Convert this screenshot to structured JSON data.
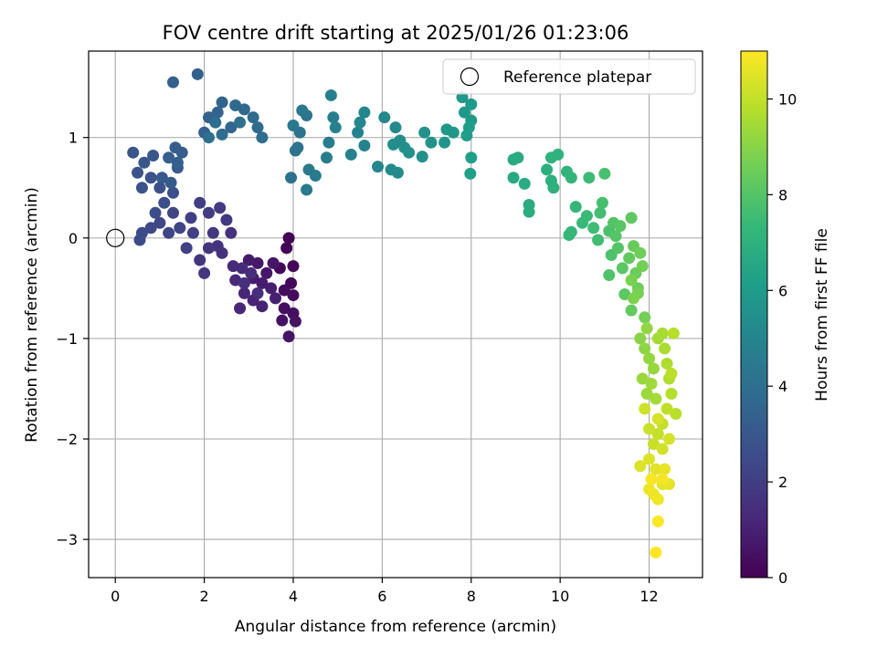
{
  "chart_data": {
    "type": "scatter",
    "title": "FOV centre drift starting at 2025/01/26 01:23:06",
    "xlabel": "Angular distance from reference (arcmin)",
    "ylabel": "Rotation from reference (arcmin)",
    "xlim": [
      -0.6,
      13.2
    ],
    "ylim": [
      -3.38,
      1.86
    ],
    "xticks": [
      0,
      2,
      4,
      6,
      8,
      10,
      12
    ],
    "yticks": [
      -3,
      -2,
      -1,
      0,
      1
    ],
    "grid": true,
    "legend": {
      "label": "Reference platepar",
      "position": "top-right"
    },
    "reference_point": {
      "x": 0,
      "y": 0
    },
    "colorbar": {
      "label": "Hours from first FF file",
      "range": [
        0,
        11
      ],
      "ticks": [
        0,
        2,
        4,
        6,
        8,
        10
      ],
      "colormap": "viridis"
    },
    "colormap_stops": [
      "#440154",
      "#482878",
      "#3e4a89",
      "#31688e",
      "#26828e",
      "#1f9e89",
      "#35b779",
      "#6ece58",
      "#b5de2b",
      "#fde725"
    ],
    "series": [
      {
        "points": [
          [
            3.9,
            0.0,
            0.0
          ],
          [
            3.85,
            -0.1,
            0.1
          ],
          [
            4.0,
            -0.28,
            0.15
          ],
          [
            3.7,
            -0.3,
            0.2
          ],
          [
            3.95,
            -0.45,
            0.25
          ],
          [
            3.8,
            -0.52,
            0.3
          ],
          [
            4.0,
            -0.57,
            0.35
          ],
          [
            3.8,
            -0.7,
            0.4
          ],
          [
            4.0,
            -0.75,
            0.45
          ],
          [
            3.75,
            -0.82,
            0.5
          ],
          [
            4.05,
            -0.83,
            0.55
          ],
          [
            3.9,
            -0.98,
            0.6
          ],
          [
            3.55,
            -0.25,
            0.65
          ],
          [
            3.4,
            -0.35,
            0.7
          ],
          [
            3.2,
            -0.25,
            0.75
          ],
          [
            3.0,
            -0.22,
            0.8
          ],
          [
            3.1,
            -0.4,
            0.85
          ],
          [
            3.3,
            -0.45,
            0.9
          ],
          [
            3.5,
            -0.5,
            0.95
          ],
          [
            3.6,
            -0.6,
            1.0
          ],
          [
            3.3,
            -0.68,
            1.05
          ],
          [
            3.1,
            -0.62,
            1.1
          ],
          [
            2.9,
            -0.55,
            1.15
          ],
          [
            2.8,
            -0.7,
            1.2
          ],
          [
            2.7,
            -0.42,
            1.25
          ],
          [
            2.65,
            -0.28,
            1.3
          ],
          [
            2.85,
            -0.3,
            1.35
          ],
          [
            3.05,
            -0.35,
            1.4
          ],
          [
            3.2,
            -0.55,
            1.45
          ],
          [
            2.9,
            -0.45,
            1.5
          ],
          [
            2.4,
            -0.15,
            1.5
          ],
          [
            2.6,
            0.05,
            1.55
          ],
          [
            2.3,
            -0.08,
            1.6
          ],
          [
            2.1,
            -0.1,
            1.65
          ],
          [
            1.9,
            -0.22,
            1.7
          ],
          [
            2.0,
            -0.35,
            1.75
          ],
          [
            2.2,
            0.05,
            1.8
          ],
          [
            2.5,
            0.18,
            1.85
          ],
          [
            2.35,
            0.3,
            1.9
          ],
          [
            2.1,
            0.25,
            1.95
          ],
          [
            1.9,
            0.35,
            2.0
          ],
          [
            1.7,
            0.2,
            2.05
          ],
          [
            1.75,
            0.05,
            2.1
          ],
          [
            1.6,
            -0.1,
            2.15
          ],
          [
            1.45,
            0.1,
            2.2
          ],
          [
            1.3,
            0.25,
            2.25
          ],
          [
            1.2,
            0.05,
            2.3
          ],
          [
            1.0,
            0.15,
            2.35
          ],
          [
            0.8,
            0.1,
            2.4
          ],
          [
            0.6,
            0.05,
            2.45
          ],
          [
            0.55,
            -0.02,
            2.5
          ],
          [
            0.9,
            0.25,
            2.55
          ],
          [
            1.1,
            0.35,
            2.6
          ],
          [
            1.3,
            0.45,
            2.65
          ],
          [
            1.0,
            0.5,
            2.7
          ],
          [
            0.8,
            0.6,
            2.75
          ],
          [
            0.6,
            0.5,
            2.8
          ],
          [
            0.5,
            0.65,
            2.85
          ],
          [
            0.4,
            0.85,
            2.9
          ],
          [
            0.65,
            0.75,
            2.95
          ],
          [
            0.85,
            0.82,
            3.0
          ],
          [
            1.05,
            0.6,
            3.05
          ],
          [
            1.25,
            0.55,
            3.1
          ],
          [
            1.4,
            0.7,
            3.15
          ],
          [
            1.5,
            0.85,
            3.2
          ],
          [
            1.35,
            0.9,
            3.25
          ],
          [
            1.2,
            0.8,
            3.3
          ],
          [
            1.4,
            0.75,
            3.35
          ],
          [
            1.3,
            1.55,
            3.3
          ],
          [
            1.85,
            1.63,
            3.35
          ],
          [
            2.0,
            1.05,
            3.4
          ],
          [
            2.1,
            1.2,
            3.45
          ],
          [
            2.3,
            1.25,
            3.5
          ],
          [
            2.4,
            1.35,
            3.55
          ],
          [
            2.6,
            1.1,
            3.6
          ],
          [
            2.7,
            1.32,
            3.65
          ],
          [
            2.9,
            1.28,
            3.7
          ],
          [
            3.1,
            1.2,
            3.75
          ],
          [
            3.2,
            1.1,
            3.8
          ],
          [
            3.3,
            1.0,
            3.85
          ],
          [
            2.4,
            1.03,
            3.9
          ],
          [
            2.25,
            1.15,
            3.95
          ],
          [
            2.1,
            1.0,
            4.0
          ],
          [
            2.8,
            1.15,
            4.05
          ],
          [
            3.95,
            0.6,
            4.1
          ],
          [
            4.05,
            0.87,
            4.15
          ],
          [
            4.1,
            0.9,
            4.2
          ],
          [
            4.15,
            1.05,
            4.25
          ],
          [
            4.3,
            1.22,
            4.3
          ],
          [
            4.2,
            1.27,
            4.35
          ],
          [
            4.0,
            1.12,
            4.4
          ],
          [
            4.3,
            0.48,
            4.45
          ],
          [
            4.35,
            0.68,
            4.5
          ],
          [
            4.5,
            0.62,
            4.55
          ],
          [
            4.75,
            0.8,
            4.6
          ],
          [
            4.8,
            0.95,
            4.65
          ],
          [
            4.9,
            1.2,
            4.7
          ],
          [
            4.85,
            1.42,
            4.75
          ],
          [
            4.95,
            1.1,
            4.8
          ],
          [
            5.3,
            0.83,
            4.85
          ],
          [
            5.45,
            1.05,
            4.9
          ],
          [
            5.6,
            0.92,
            4.95
          ],
          [
            5.6,
            1.25,
            5.0
          ],
          [
            5.5,
            1.15,
            5.05
          ],
          [
            5.9,
            0.71,
            5.1
          ],
          [
            6.05,
            1.2,
            5.15
          ],
          [
            6.3,
            1.1,
            5.2
          ],
          [
            6.2,
            0.68,
            5.25
          ],
          [
            6.35,
            0.65,
            5.3
          ],
          [
            6.25,
            0.93,
            5.35
          ],
          [
            6.4,
            0.97,
            5.4
          ],
          [
            6.5,
            0.9,
            5.45
          ],
          [
            6.6,
            0.85,
            5.5
          ],
          [
            6.9,
            0.81,
            5.55
          ],
          [
            6.95,
            1.05,
            5.6
          ],
          [
            7.1,
            0.95,
            5.65
          ],
          [
            7.4,
            0.95,
            5.7
          ],
          [
            7.45,
            1.08,
            5.75
          ],
          [
            7.6,
            1.05,
            5.8
          ],
          [
            7.8,
            1.4,
            5.85
          ],
          [
            7.85,
            1.25,
            5.9
          ],
          [
            8.0,
            1.33,
            5.95
          ],
          [
            8.0,
            1.17,
            6.0
          ],
          [
            7.95,
            1.1,
            6.05
          ],
          [
            7.9,
            1.02,
            6.1
          ],
          [
            8.0,
            0.8,
            6.15
          ],
          [
            7.98,
            0.64,
            6.2
          ],
          [
            8.95,
            0.6,
            6.6
          ],
          [
            8.95,
            0.78,
            6.65
          ],
          [
            9.05,
            0.8,
            6.7
          ],
          [
            9.2,
            0.54,
            6.75
          ],
          [
            9.3,
            0.33,
            6.8
          ],
          [
            9.3,
            0.26,
            6.85
          ],
          [
            9.7,
            0.68,
            6.9
          ],
          [
            9.8,
            0.57,
            6.95
          ],
          [
            9.85,
            0.5,
            7.0
          ],
          [
            9.8,
            0.8,
            7.05
          ],
          [
            9.95,
            0.83,
            7.1
          ],
          [
            10.15,
            0.66,
            7.15
          ],
          [
            10.25,
            0.6,
            7.2
          ],
          [
            10.35,
            0.31,
            7.25
          ],
          [
            10.2,
            0.03,
            7.3
          ],
          [
            10.25,
            0.06,
            7.35
          ],
          [
            10.5,
            0.15,
            7.4
          ],
          [
            10.6,
            0.22,
            7.45
          ],
          [
            10.65,
            0.6,
            7.5
          ],
          [
            10.75,
            0.1,
            7.55
          ],
          [
            10.85,
            -0.02,
            7.6
          ],
          [
            10.9,
            0.25,
            7.65
          ],
          [
            10.95,
            0.35,
            7.7
          ],
          [
            11.0,
            0.64,
            7.75
          ],
          [
            11.1,
            0.07,
            7.8
          ],
          [
            11.15,
            -0.17,
            7.85
          ],
          [
            11.1,
            -0.37,
            7.9
          ],
          [
            11.2,
            0.15,
            7.95
          ],
          [
            11.25,
            0.02,
            8.0
          ],
          [
            11.3,
            -0.1,
            8.05
          ],
          [
            11.35,
            0.12,
            8.1
          ],
          [
            11.4,
            -0.3,
            8.15
          ],
          [
            11.45,
            -0.56,
            8.2
          ],
          [
            11.6,
            0.2,
            8.25
          ],
          [
            11.55,
            -0.2,
            8.3
          ],
          [
            11.6,
            -0.72,
            8.35
          ],
          [
            11.65,
            -0.08,
            8.4
          ],
          [
            11.7,
            -0.35,
            8.45
          ],
          [
            11.75,
            -0.5,
            8.5
          ],
          [
            11.8,
            -0.15,
            8.55
          ],
          [
            11.85,
            -0.28,
            8.6
          ],
          [
            11.9,
            -0.79,
            8.65
          ],
          [
            11.75,
            -0.55,
            8.7
          ],
          [
            11.6,
            -0.42,
            8.75
          ],
          [
            11.65,
            -0.6,
            8.8
          ],
          [
            11.8,
            -1.0,
            9.0
          ],
          [
            11.9,
            -1.1,
            9.1
          ],
          [
            11.95,
            -0.9,
            9.15
          ],
          [
            12.0,
            -1.2,
            9.2
          ],
          [
            12.1,
            -1.3,
            9.25
          ],
          [
            11.85,
            -1.4,
            9.3
          ],
          [
            11.95,
            -1.55,
            9.35
          ],
          [
            12.05,
            -1.45,
            9.4
          ],
          [
            12.15,
            -1.6,
            9.45
          ],
          [
            12.2,
            -1.0,
            9.5
          ],
          [
            12.3,
            -0.95,
            9.55
          ],
          [
            12.35,
            -1.1,
            9.6
          ],
          [
            12.4,
            -1.25,
            9.65
          ],
          [
            12.45,
            -1.4,
            9.7
          ],
          [
            12.5,
            -1.55,
            9.75
          ],
          [
            12.55,
            -0.95,
            9.8
          ],
          [
            12.6,
            -1.75,
            9.85
          ],
          [
            12.5,
            -1.35,
            9.9
          ],
          [
            12.4,
            -1.7,
            9.95
          ],
          [
            12.3,
            -1.85,
            10.0
          ],
          [
            12.2,
            -1.95,
            10.05
          ],
          [
            12.1,
            -2.05,
            10.1
          ],
          [
            12.0,
            -1.9,
            10.15
          ],
          [
            11.9,
            -1.7,
            10.2
          ],
          [
            12.3,
            -2.1,
            10.25
          ],
          [
            12.45,
            -2.0,
            10.3
          ],
          [
            12.2,
            -1.8,
            10.35
          ],
          [
            11.8,
            -2.27,
            10.4
          ],
          [
            12.0,
            -2.2,
            10.45
          ],
          [
            12.15,
            -2.3,
            10.5
          ],
          [
            12.3,
            -2.45,
            10.55
          ],
          [
            12.45,
            -2.45,
            10.6
          ],
          [
            12.35,
            -2.3,
            10.65
          ],
          [
            12.1,
            -2.55,
            10.7
          ],
          [
            12.0,
            -2.5,
            10.75
          ],
          [
            12.2,
            -2.6,
            10.8
          ],
          [
            12.3,
            -2.4,
            10.85
          ],
          [
            12.05,
            -2.4,
            10.9
          ],
          [
            12.2,
            -2.82,
            10.95
          ],
          [
            12.15,
            -3.13,
            11.0
          ]
        ]
      }
    ]
  }
}
